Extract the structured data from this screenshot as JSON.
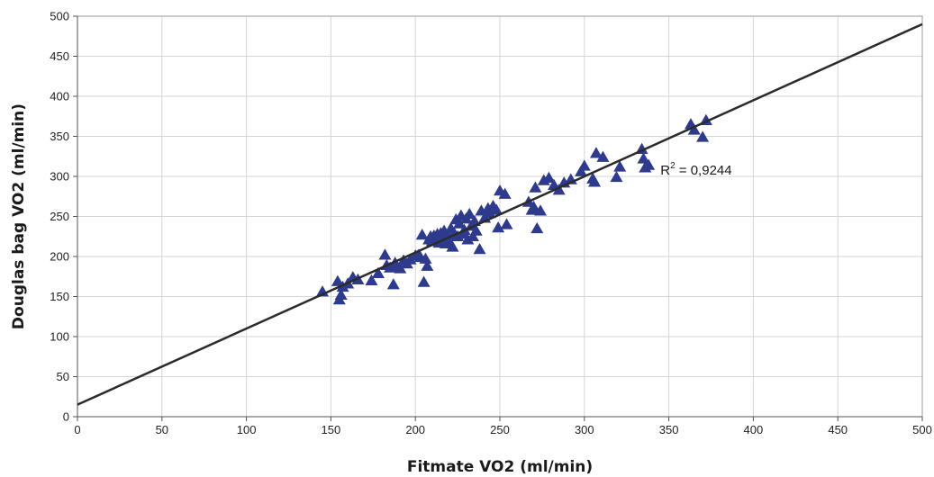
{
  "chart_data": {
    "type": "scatter",
    "xlabel": "Fitmate VO2 (ml/min)",
    "ylabel": "Douglas bag VO2 (ml/min)",
    "xlim": [
      0,
      500
    ],
    "ylim": [
      0,
      500
    ],
    "xticks": [
      "0",
      "50",
      "100",
      "150",
      "200",
      "250",
      "300",
      "350",
      "400",
      "450",
      "500"
    ],
    "yticks": [
      "0",
      "50",
      "100",
      "150",
      "200",
      "250",
      "300",
      "350",
      "400",
      "450",
      "500"
    ],
    "grid": true,
    "marker": "triangle",
    "marker_color": "#2e3a8c",
    "line_color": "#2b2b2b",
    "trendline": {
      "type": "linear",
      "x": [
        0,
        500
      ],
      "y": [
        15,
        490
      ]
    },
    "annotation": {
      "prefix": "R",
      "superscript": "2",
      "suffix": " = 0,9244",
      "x": 345,
      "y": 302
    },
    "points": [
      [
        145,
        156
      ],
      [
        154,
        169
      ],
      [
        155,
        146
      ],
      [
        156,
        152
      ],
      [
        157,
        162
      ],
      [
        160,
        166
      ],
      [
        163,
        174
      ],
      [
        166,
        171
      ],
      [
        174,
        170
      ],
      [
        178,
        179
      ],
      [
        182,
        202
      ],
      [
        183,
        189
      ],
      [
        185,
        186
      ],
      [
        187,
        165
      ],
      [
        188,
        192
      ],
      [
        189,
        188
      ],
      [
        191,
        185
      ],
      [
        193,
        195
      ],
      [
        195,
        191
      ],
      [
        197,
        196
      ],
      [
        200,
        201
      ],
      [
        202,
        202
      ],
      [
        203,
        199
      ],
      [
        204,
        227
      ],
      [
        205,
        168
      ],
      [
        206,
        197
      ],
      [
        207,
        188
      ],
      [
        208,
        221
      ],
      [
        209,
        225
      ],
      [
        210,
        219
      ],
      [
        211,
        226
      ],
      [
        212,
        223
      ],
      [
        213,
        228
      ],
      [
        214,
        217
      ],
      [
        215,
        229
      ],
      [
        216,
        222
      ],
      [
        217,
        232
      ],
      [
        218,
        216
      ],
      [
        219,
        227
      ],
      [
        220,
        219
      ],
      [
        221,
        235
      ],
      [
        222,
        212
      ],
      [
        223,
        229
      ],
      [
        224,
        246
      ],
      [
        225,
        225
      ],
      [
        226,
        241
      ],
      [
        227,
        251
      ],
      [
        228,
        228
      ],
      [
        229,
        233
      ],
      [
        230,
        247
      ],
      [
        231,
        221
      ],
      [
        232,
        253
      ],
      [
        233,
        238
      ],
      [
        234,
        225
      ],
      [
        235,
        244
      ],
      [
        236,
        232
      ],
      [
        238,
        209
      ],
      [
        239,
        257
      ],
      [
        241,
        248
      ],
      [
        243,
        260
      ],
      [
        244,
        254
      ],
      [
        246,
        263
      ],
      [
        248,
        258
      ],
      [
        249,
        236
      ],
      [
        250,
        282
      ],
      [
        253,
        278
      ],
      [
        254,
        240
      ],
      [
        267,
        268
      ],
      [
        269,
        258
      ],
      [
        270,
        262
      ],
      [
        271,
        286
      ],
      [
        272,
        235
      ],
      [
        274,
        257
      ],
      [
        276,
        295
      ],
      [
        279,
        298
      ],
      [
        282,
        289
      ],
      [
        285,
        283
      ],
      [
        288,
        292
      ],
      [
        292,
        296
      ],
      [
        298,
        306
      ],
      [
        300,
        313
      ],
      [
        305,
        297
      ],
      [
        306,
        293
      ],
      [
        307,
        329
      ],
      [
        311,
        324
      ],
      [
        319,
        299
      ],
      [
        321,
        312
      ],
      [
        334,
        334
      ],
      [
        335,
        322
      ],
      [
        336,
        311
      ],
      [
        338,
        314
      ],
      [
        363,
        365
      ],
      [
        365,
        358
      ],
      [
        370,
        349
      ],
      [
        372,
        370
      ]
    ]
  }
}
